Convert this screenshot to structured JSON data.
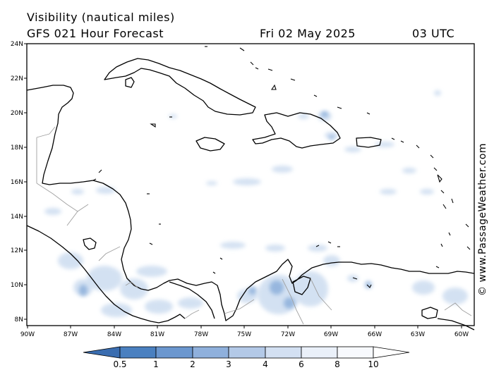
{
  "header": {
    "title_line1": "Visibility (nautical miles)",
    "title_line2": "GFS 021 Hour Forecast",
    "date": "Fri 02 May 2025",
    "time": "03 UTC"
  },
  "map": {
    "lat_labels": [
      "24N",
      "22N",
      "20N",
      "18N",
      "16N",
      "14N",
      "12N",
      "10N",
      "8N"
    ],
    "lon_labels": [
      "90W",
      "87W",
      "84W",
      "81W",
      "78W",
      "75W",
      "72W",
      "69W",
      "66W",
      "63W",
      "60W"
    ],
    "colors": {
      "land_outline": "#000000",
      "border": "#a0a0a0",
      "shading": "#c9daef"
    }
  },
  "legend": {
    "labels": [
      "0.5",
      "1",
      "2",
      "3",
      "4",
      "6",
      "8",
      "10"
    ],
    "colors": [
      "#3a6db0",
      "#4a80c0",
      "#6b97cf",
      "#8fb0dc",
      "#b3c9e7",
      "#d3e0f2",
      "#eaf0f9",
      "#f7f9fd"
    ]
  },
  "watermark": "© www.PassageWeather.com"
}
